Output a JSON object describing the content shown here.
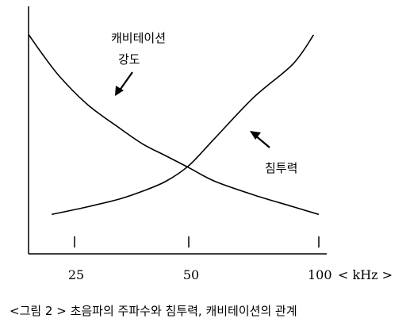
{
  "chart_data": {
    "type": "line",
    "x_ticks": [
      "25",
      "50",
      "100"
    ],
    "x_unit_label": "< kHz >",
    "caption": "<그림 2 > 초음파의 주파수와 침투력, 캐비테이션의 관계",
    "series": [
      {
        "name": "캐비테이션 강도",
        "points": [
          [
            15,
            1.0
          ],
          [
            18,
            0.9
          ],
          [
            22,
            0.78
          ],
          [
            28,
            0.64
          ],
          [
            35,
            0.52
          ],
          [
            40,
            0.44
          ],
          [
            45,
            0.38
          ],
          [
            50,
            0.32
          ],
          [
            60,
            0.25
          ],
          [
            75,
            0.18
          ],
          [
            90,
            0.12
          ],
          [
            100,
            0.08
          ]
        ]
      },
      {
        "name": "침투력",
        "points": [
          [
            20,
            0.08
          ],
          [
            28,
            0.12
          ],
          [
            35,
            0.16
          ],
          [
            40,
            0.2
          ],
          [
            45,
            0.25
          ],
          [
            50,
            0.33
          ],
          [
            60,
            0.47
          ],
          [
            75,
            0.68
          ],
          [
            90,
            0.85
          ],
          [
            98,
            1.0
          ]
        ]
      }
    ],
    "annotations": [
      {
        "text_lines": [
          "캐비테이션",
          "강도"
        ],
        "points_to": "캐비테이션 강도"
      },
      {
        "text_lines": [
          "침투력"
        ],
        "points_to": "침투력"
      }
    ],
    "axis_line_color": "#000000"
  }
}
